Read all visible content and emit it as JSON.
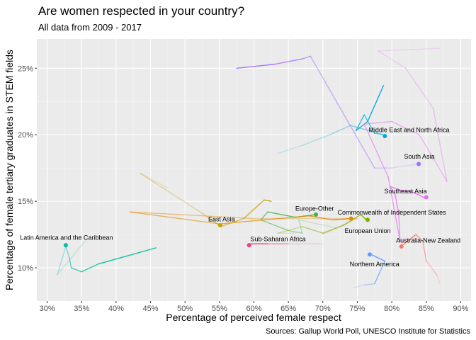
{
  "chart_data": {
    "type": "line",
    "title": "Are women respected in your country?",
    "subtitle": "All data from 2009 - 2017",
    "xlabel": "Percentage of perceived female respect",
    "ylabel": "Percentage of female tertiary graduates in STEM fields",
    "caption": "Sources: Gallup World Poll, UNESCO Institute for Statistics",
    "xlim": [
      28.5,
      91.5
    ],
    "ylim": [
      7.5,
      27.2
    ],
    "x_ticks": [
      30,
      35,
      40,
      45,
      50,
      55,
      60,
      65,
      70,
      75,
      80,
      85,
      90
    ],
    "x_tick_labels": [
      "30%",
      "35%",
      "40%",
      "45%",
      "50%",
      "55%",
      "60%",
      "65%",
      "70%",
      "75%",
      "80%",
      "85%",
      "90%"
    ],
    "y_ticks": [
      10,
      15,
      20,
      25
    ],
    "y_tick_labels": [
      "10%",
      "15%",
      "20%",
      "25%"
    ],
    "grid": true,
    "legend": "none",
    "series": [
      {
        "name": "Latin America and the Caribbean",
        "color": "#00BFA0",
        "path": [
          [
            45.8,
            11.5
          ],
          [
            37.5,
            10.3
          ],
          [
            35.0,
            9.7
          ],
          [
            33.5,
            10.0
          ],
          [
            33.2,
            10.8
          ],
          [
            32.7,
            11.6
          ],
          [
            31.5,
            9.5
          ],
          [
            35.5,
            12.0
          ]
        ],
        "point": [
          32.7,
          11.7
        ],
        "label_anchor": [
          32.8,
          12.1
        ]
      },
      {
        "name": "East Asia",
        "color": "#C9A000",
        "path": [
          [
            62.5,
            15.0
          ],
          [
            61.5,
            15.1
          ],
          [
            58.5,
            13.7
          ],
          [
            55.2,
            13.1
          ],
          [
            52.5,
            14.1
          ],
          [
            43.5,
            17.1
          ],
          [
            47.5,
            16.0
          ]
        ],
        "point": [
          55.1,
          13.2
        ],
        "label_anchor": [
          55.3,
          13.5
        ]
      },
      {
        "name": "Sub-Saharan Africa",
        "color": "#F23D8A",
        "path": [
          [
            59.2,
            11.8
          ],
          [
            62.0,
            11.8
          ],
          [
            65.0,
            11.8
          ],
          [
            70.0,
            11.8
          ]
        ],
        "point": [
          59.3,
          11.7
        ],
        "label_anchor": [
          63.5,
          12.0
        ]
      },
      {
        "name": "Europe-Other",
        "color": "#3CB44B",
        "path": [
          [
            69.0,
            14.0
          ],
          [
            66.0,
            13.8
          ],
          [
            62.0,
            14.2
          ],
          [
            61.0,
            13.6
          ],
          [
            65.0,
            12.8
          ],
          [
            67.0,
            12.6
          ],
          [
            66.5,
            13.6
          ],
          [
            72.0,
            13.0
          ]
        ],
        "point": [
          69.0,
          14.0
        ],
        "label_anchor": [
          68.8,
          14.3
        ]
      },
      {
        "name": "European Union",
        "color": "#7CAE00",
        "path": [
          [
            76.3,
            13.6
          ],
          [
            75.5,
            14.0
          ],
          [
            73.0,
            13.2
          ],
          [
            70.0,
            12.6
          ],
          [
            67.0,
            13.1
          ],
          [
            63.5,
            12.6
          ],
          [
            66.0,
            12.6
          ]
        ],
        "point": [
          76.5,
          13.6
        ],
        "label_anchor": [
          76.5,
          12.6
        ]
      },
      {
        "name": "Commonwealth of Independent States",
        "color": "#E08B00",
        "path": [
          [
            74.0,
            13.7
          ],
          [
            71.5,
            13.6
          ],
          [
            68.0,
            13.9
          ],
          [
            55.0,
            13.3
          ],
          [
            42.0,
            14.2
          ],
          [
            60.0,
            13.7
          ],
          [
            75.0,
            13.7
          ],
          [
            70.0,
            12.5
          ]
        ],
        "point": [
          74.1,
          13.7
        ],
        "label_anchor": [
          80.0,
          14.0
        ]
      },
      {
        "name": "Middle East and North Africa",
        "color": "#00A9D9",
        "path": [
          [
            78.8,
            23.7
          ],
          [
            76.5,
            21.0
          ],
          [
            74.8,
            20.3
          ],
          [
            76.0,
            21.5
          ],
          [
            77.5,
            20.1
          ],
          [
            78.8,
            20.0
          ],
          [
            74.0,
            20.7
          ],
          [
            71.0,
            20.0
          ],
          [
            67.0,
            19.2
          ],
          [
            63.5,
            18.6
          ]
        ],
        "point": [
          79.0,
          19.9
        ],
        "label_anchor": [
          82.5,
          20.2
        ]
      },
      {
        "name": "South Asia",
        "color": "#A66CFF",
        "path": [
          [
            57.5,
            25.0
          ],
          [
            63.0,
            25.3
          ],
          [
            67.0,
            25.7
          ],
          [
            68.2,
            25.9
          ],
          [
            77.5,
            17.5
          ],
          [
            80.0,
            17.5
          ],
          [
            83.8,
            17.8
          ]
        ],
        "point": [
          83.9,
          17.8
        ],
        "label_anchor": [
          84.0,
          18.2
        ]
      },
      {
        "name": "Southeast Asia",
        "color": "#E76BF3",
        "path": [
          [
            85.0,
            15.2
          ],
          [
            83.0,
            15.7
          ],
          [
            81.5,
            15.8
          ],
          [
            79.8,
            16.1
          ],
          [
            80.5,
            15.5
          ],
          [
            81.0,
            14.0
          ],
          [
            81.2,
            12.0
          ],
          [
            79.5,
            16.8
          ],
          [
            76.0,
            20.8
          ],
          [
            80.0,
            21.0
          ],
          [
            84.0,
            20.0
          ],
          [
            88.0,
            16.5
          ],
          [
            86.0,
            22.0
          ],
          [
            82.0,
            25.0
          ],
          [
            78.0,
            26.3
          ],
          [
            87.0,
            26.5
          ]
        ],
        "point": [
          85.0,
          15.3
        ],
        "label_anchor": [
          82.0,
          15.6
        ]
      },
      {
        "name": "Australia-New Zealand",
        "color": "#F8766D",
        "path": [
          [
            81.3,
            11.6
          ],
          [
            83.5,
            12.5
          ],
          [
            84.5,
            12.0
          ],
          [
            85.0,
            10.5
          ],
          [
            86.5,
            9.5
          ],
          [
            87.0,
            8.8
          ]
        ],
        "point": [
          81.4,
          11.6
        ],
        "label_anchor": [
          85.3,
          11.9
        ]
      },
      {
        "name": "Northern America",
        "color": "#619CFF",
        "path": [
          [
            77.0,
            11.0
          ],
          [
            79.0,
            10.5
          ],
          [
            77.5,
            8.8
          ],
          [
            76.0,
            8.7
          ],
          [
            74.5,
            8.5
          ]
        ],
        "point": [
          76.8,
          11.0
        ],
        "label_anchor": [
          77.5,
          10.1
        ]
      }
    ]
  }
}
